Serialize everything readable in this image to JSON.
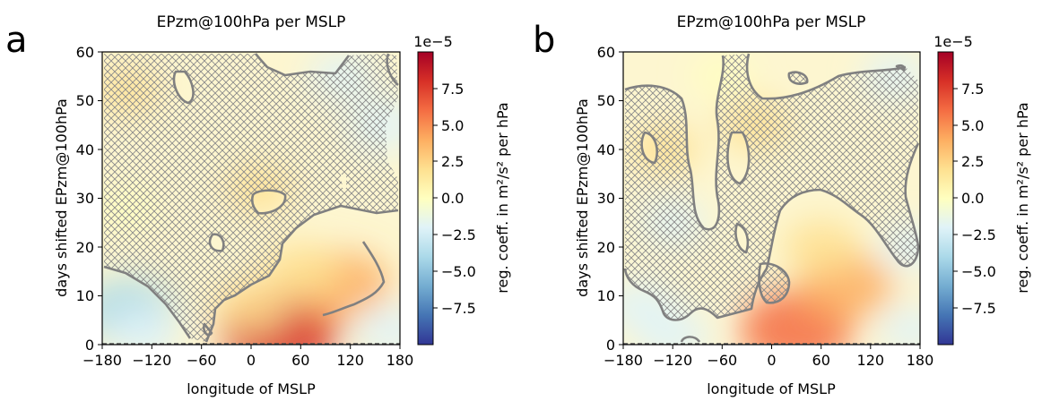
{
  "chart_data": [
    {
      "type": "heatmap",
      "panel_label": "a",
      "title": "EPzm@100hPa per MSLP",
      "xlabel": "longitude of MSLP",
      "ylabel": "days shifted EPzm@100hPa",
      "x_ticks": [
        "−180",
        "−120",
        "−60",
        "0",
        "60",
        "120",
        "180"
      ],
      "y_ticks": [
        "0",
        "10",
        "20",
        "30",
        "40",
        "50",
        "60"
      ],
      "xlim": [
        -180,
        180
      ],
      "ylim": [
        0,
        60
      ],
      "colorbar": {
        "label": "reg. coeff. in m²/s² per hPa",
        "offset_text": "1e−5",
        "ticks": [
          "7.5",
          "5.0",
          "2.5",
          "0.0",
          "−2.5",
          "−5.0",
          "−7.5"
        ],
        "range": [
          -10,
          10
        ],
        "colormap": [
          "#313695",
          "#4575b4",
          "#74add1",
          "#abd9e9",
          "#e0f3f8",
          "#ffffbf",
          "#fee090",
          "#fdae61",
          "#f46d43",
          "#d73027",
          "#a50026"
        ]
      },
      "features": [
        {
          "lon": 35,
          "day": 3,
          "value": 7.5
        },
        {
          "lon": 110,
          "day": 12,
          "value": 4.8
        },
        {
          "lon": 60,
          "day": 15,
          "value": 2.8
        },
        {
          "lon": 0,
          "day": 8,
          "value": 2.2
        },
        {
          "lon": -150,
          "day": 7,
          "value": -4.5
        },
        {
          "lon": -130,
          "day": 2,
          "value": -2.2
        },
        {
          "lon": 170,
          "day": 3,
          "value": -2.5
        },
        {
          "lon": 160,
          "day": 45,
          "value": -2.5
        },
        {
          "lon": 110,
          "day": 55,
          "value": -1.5
        },
        {
          "lon": -150,
          "day": 52,
          "value": 1.2
        },
        {
          "lon": 10,
          "day": 32,
          "value": 1.5
        },
        {
          "lon": -150,
          "day": 28,
          "value": -1.0
        }
      ],
      "hatch_note": "non-significant regions hatched; significant regions outlined in grey"
    },
    {
      "type": "heatmap",
      "panel_label": "b",
      "title": "EPzm@100hPa per MSLP",
      "xlabel": "longitude of MSLP",
      "ylabel": "days shifted EPzm@100hPa",
      "x_ticks": [
        "−180",
        "−120",
        "−60",
        "0",
        "60",
        "120",
        "180"
      ],
      "y_ticks": [
        "0",
        "10",
        "20",
        "30",
        "40",
        "50",
        "60"
      ],
      "xlim": [
        -180,
        180
      ],
      "ylim": [
        0,
        60
      ],
      "colorbar": {
        "label": "reg. coeff. in m²/s² per hPa",
        "offset_text": "1e−5",
        "ticks": [
          "7.5",
          "5.0",
          "2.5",
          "0.0",
          "−2.5",
          "−5.0",
          "−7.5"
        ],
        "range": [
          -10,
          10
        ],
        "colormap": [
          "#313695",
          "#4575b4",
          "#74add1",
          "#abd9e9",
          "#e0f3f8",
          "#ffffbf",
          "#fee090",
          "#fdae61",
          "#f46d43",
          "#d73027",
          "#a50026"
        ]
      },
      "features": [
        {
          "lon": 30,
          "day": 3,
          "value": 6.5
        },
        {
          "lon": 90,
          "day": 12,
          "value": 4.5
        },
        {
          "lon": 60,
          "day": 20,
          "value": 2.5
        },
        {
          "lon": -160,
          "day": 8,
          "value": -2.0
        },
        {
          "lon": -120,
          "day": 25,
          "value": -1.2
        },
        {
          "lon": -20,
          "day": 45,
          "value": 1.8
        },
        {
          "lon": -130,
          "day": 40,
          "value": 1.5
        },
        {
          "lon": 170,
          "day": 20,
          "value": -1.5
        },
        {
          "lon": 150,
          "day": 55,
          "value": -1.5
        },
        {
          "lon": -120,
          "day": 2,
          "value": -2.5
        },
        {
          "lon": 170,
          "day": 3,
          "value": -1.5
        },
        {
          "lon": -60,
          "day": 55,
          "value": 0.8
        }
      ],
      "hatch_note": "non-significant regions hatched; significant regions outlined in grey"
    }
  ]
}
